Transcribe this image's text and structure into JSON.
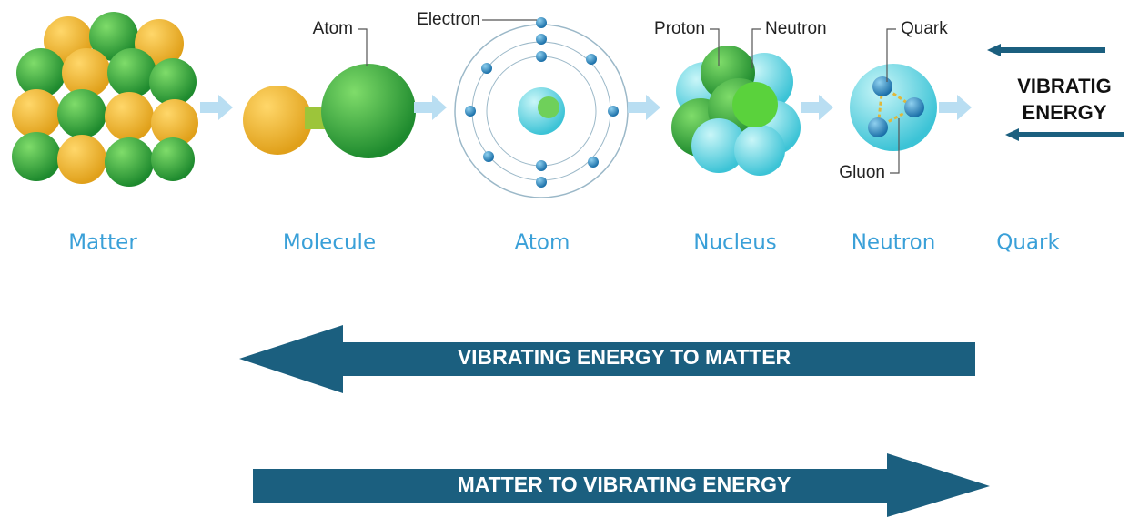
{
  "stages": [
    {
      "label": "Matter"
    },
    {
      "label": "Molecule",
      "callouts": [
        "Atom"
      ]
    },
    {
      "label": "Atom",
      "callouts": [
        "Electron"
      ]
    },
    {
      "label": "Nucleus",
      "callouts": [
        "Proton",
        "Neutron"
      ]
    },
    {
      "label": "Neutron",
      "callouts": [
        "Quark",
        "Gluon"
      ]
    },
    {
      "label": "Quark",
      "note": [
        "VIBRATIG",
        "ENERGY"
      ]
    }
  ],
  "arrows": [
    "VIBRATING ENERGY TO MATTER",
    "MATTER TO VIBRATING ENERGY"
  ]
}
